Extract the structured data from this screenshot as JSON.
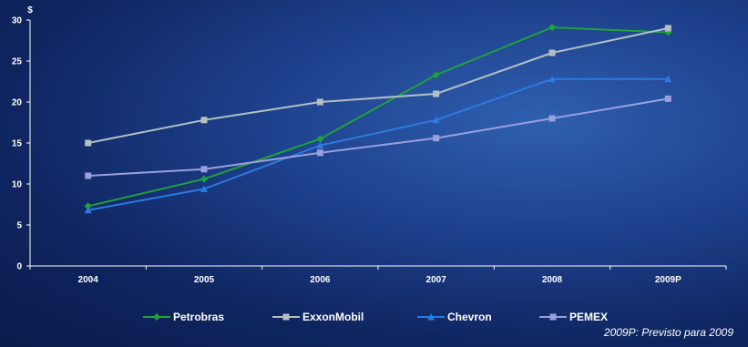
{
  "chart_data": {
    "type": "line",
    "title": "",
    "ylabel": "$",
    "xlabel": "",
    "categories": [
      "2004",
      "2005",
      "2006",
      "2007",
      "2008",
      "2009P"
    ],
    "ylim": [
      0,
      30
    ],
    "yticks": [
      0,
      5,
      10,
      15,
      20,
      25,
      30
    ],
    "grid": false,
    "legend_position": "bottom",
    "series": [
      {
        "name": "Petrobras",
        "color": "#1fa23a",
        "marker": "diamond",
        "values": [
          7.3,
          10.6,
          15.5,
          23.3,
          29.1,
          28.5
        ]
      },
      {
        "name": "ExxonMobil",
        "color": "#b3c0c4",
        "marker": "square",
        "values": [
          15.0,
          17.8,
          20.0,
          21.0,
          26.0,
          29.0
        ]
      },
      {
        "name": "Chevron",
        "color": "#2b7be0",
        "marker": "triangle",
        "values": [
          6.8,
          9.4,
          14.7,
          17.8,
          22.8,
          22.8
        ]
      },
      {
        "name": "PEMEX",
        "color": "#9a9fde",
        "marker": "square",
        "values": [
          11.0,
          11.8,
          13.8,
          15.6,
          18.0,
          20.4
        ]
      }
    ]
  },
  "footnote": "2009P: Previsto para  2009"
}
